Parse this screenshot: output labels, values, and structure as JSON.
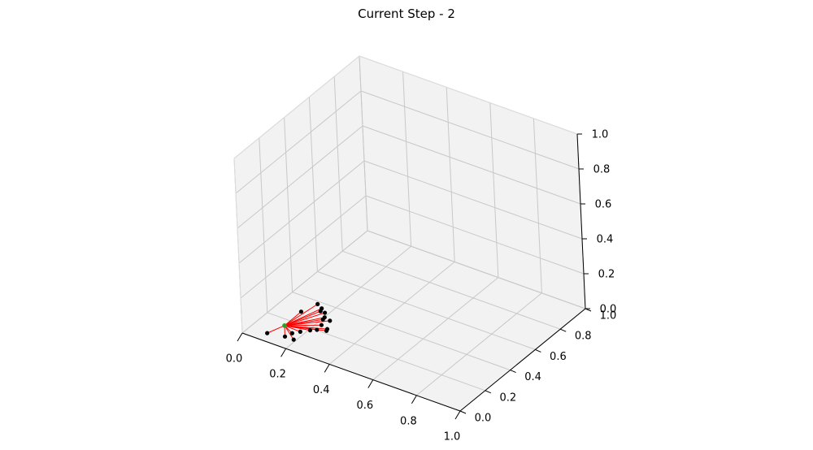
{
  "chart_data": {
    "type": "scatter",
    "projection": "3d",
    "title": "Current Step - 2",
    "xlabel": "",
    "ylabel": "",
    "zlabel": "",
    "xlim": [
      0,
      1
    ],
    "ylim": [
      0,
      1
    ],
    "zlim": [
      0,
      1
    ],
    "x_ticks": [
      "0.0",
      "0.2",
      "0.4",
      "0.6",
      "0.8",
      "1.0"
    ],
    "y_ticks": [
      "0.0",
      "0.2",
      "0.4",
      "0.6",
      "0.8",
      "1.0"
    ],
    "z_ticks": [
      "0.0",
      "0.2",
      "0.4",
      "0.6",
      "0.8",
      "1.0"
    ],
    "grid": true,
    "hub": {
      "x": 0.12,
      "y": 0.13,
      "z": 0.02,
      "color": "#2ca02c"
    },
    "edge_color": "#ff0000",
    "point_color": "#000000",
    "points": [
      {
        "x": 0.08,
        "y": 0.06,
        "z": 0.0
      },
      {
        "x": 0.15,
        "y": 0.08,
        "z": 0.0
      },
      {
        "x": 0.19,
        "y": 0.08,
        "z": 0.0
      },
      {
        "x": 0.16,
        "y": 0.12,
        "z": 0.0
      },
      {
        "x": 0.18,
        "y": 0.15,
        "z": 0.0
      },
      {
        "x": 0.22,
        "y": 0.16,
        "z": 0.02
      },
      {
        "x": 0.24,
        "y": 0.18,
        "z": 0.02
      },
      {
        "x": 0.26,
        "y": 0.22,
        "z": 0.0
      },
      {
        "x": 0.27,
        "y": 0.21,
        "z": 0.02
      },
      {
        "x": 0.25,
        "y": 0.2,
        "z": 0.04
      },
      {
        "x": 0.24,
        "y": 0.23,
        "z": 0.05
      },
      {
        "x": 0.26,
        "y": 0.25,
        "z": 0.04
      },
      {
        "x": 0.23,
        "y": 0.26,
        "z": 0.04
      },
      {
        "x": 0.22,
        "y": 0.28,
        "z": 0.05
      },
      {
        "x": 0.2,
        "y": 0.28,
        "z": 0.05
      },
      {
        "x": 0.2,
        "y": 0.29,
        "z": 0.06
      },
      {
        "x": 0.14,
        "y": 0.23,
        "z": 0.05
      },
      {
        "x": 0.17,
        "y": 0.31,
        "z": 0.06
      }
    ]
  }
}
